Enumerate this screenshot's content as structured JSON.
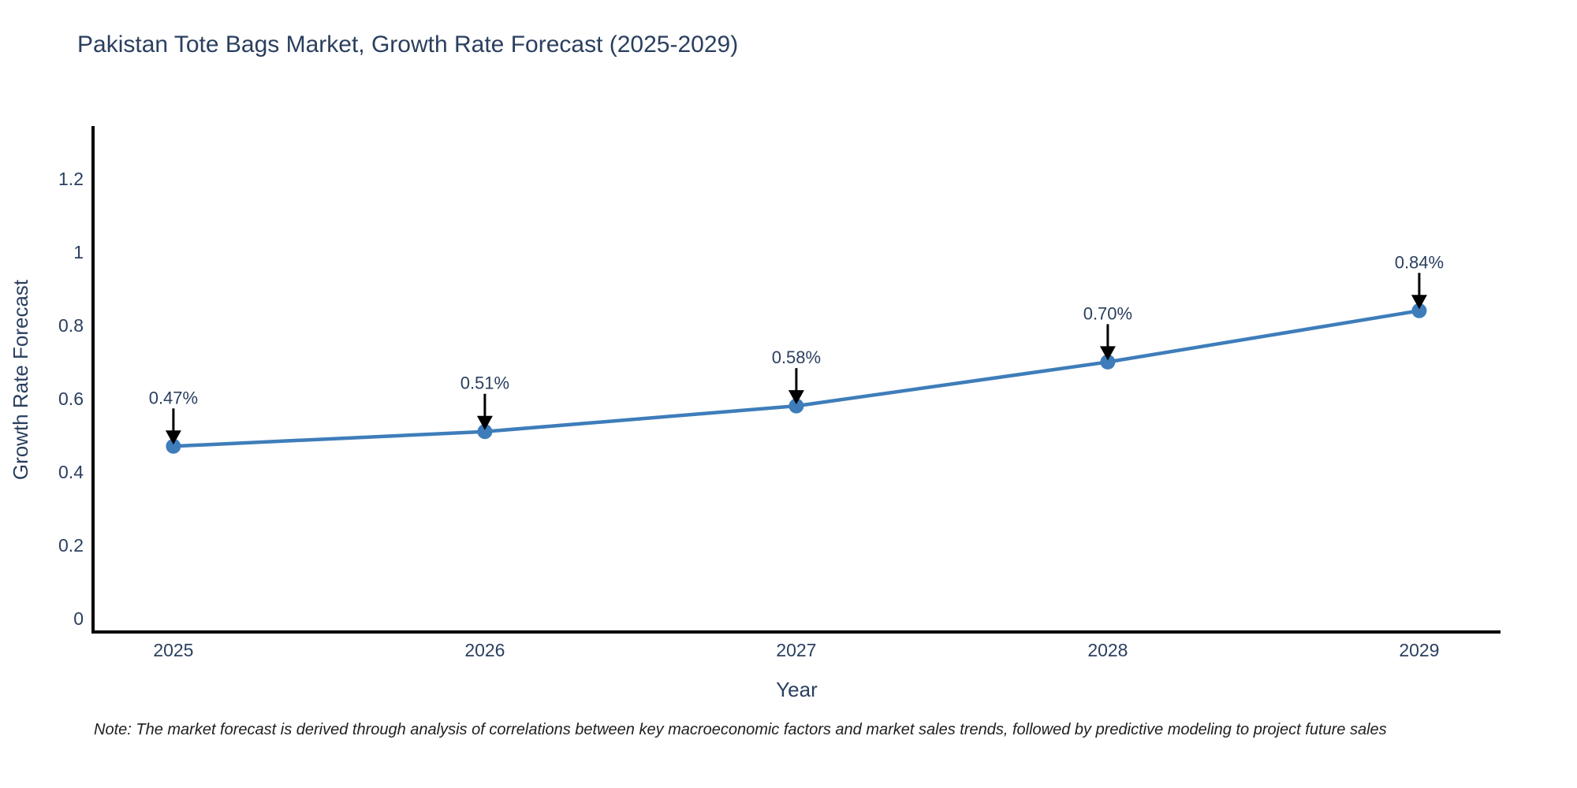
{
  "page": {
    "title": "Pakistan Tote Bags Market, Growth Rate Forecast (2025-2029)",
    "note": "Note: The market forecast is derived through analysis of correlations between key macroeconomic factors and market sales trends, followed by predictive modeling to project future sales"
  },
  "chart_data": {
    "type": "line",
    "title": "Pakistan Tote Bags Market, Growth Rate Forecast (2025-2029)",
    "xlabel": "Year",
    "ylabel": "Growth Rate Forecast",
    "categories": [
      2025,
      2026,
      2027,
      2028,
      2029
    ],
    "values": [
      0.47,
      0.51,
      0.58,
      0.7,
      0.84
    ],
    "point_labels": [
      "0.47%",
      "0.51%",
      "0.58%",
      "0.70%",
      "0.84%"
    ],
    "yticks": [
      0,
      0.2,
      0.4,
      0.6,
      0.8,
      1.0,
      1.2
    ],
    "ytick_labels": [
      "0",
      "0.2",
      "0.4",
      "0.6",
      "0.8",
      "1",
      "1.2"
    ],
    "xtick_labels": [
      "2025",
      "2026",
      "2027",
      "2028",
      "2029"
    ],
    "xlim": [
      2024.742,
      2029.261
    ],
    "ylim": [
      -0.037,
      1.344
    ],
    "grid": false,
    "legend": false,
    "line_color": "#3e7dba",
    "marker_color": "#3e7dba",
    "axis_color": "#000000",
    "arrow_color": "#000000",
    "text_color": "#2a3f5f"
  }
}
